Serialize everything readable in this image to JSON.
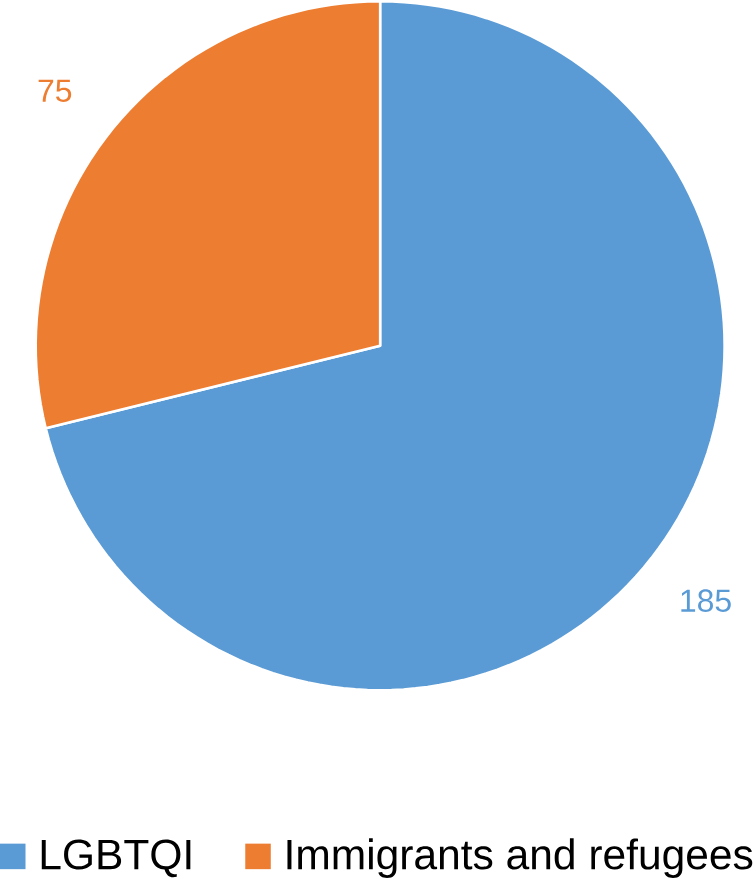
{
  "chart_data": {
    "type": "pie",
    "categories": [
      "LGBTQI",
      "Immigrants and refugees"
    ],
    "values": [
      185,
      75
    ],
    "colors": [
      "#5b9bd5",
      "#ed7d31"
    ],
    "data_labels": true,
    "legend": "bottom"
  }
}
